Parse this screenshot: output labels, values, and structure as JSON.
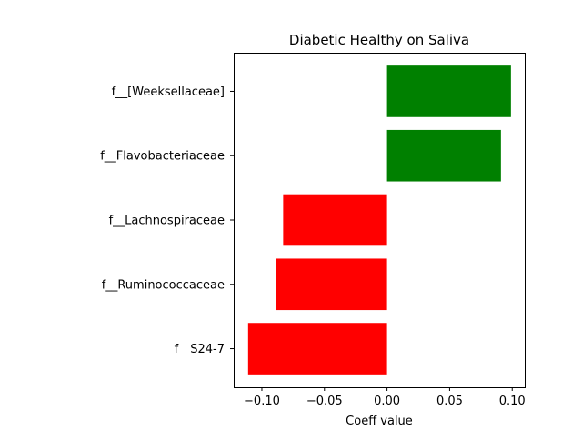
{
  "chart_data": {
    "type": "bar",
    "orientation": "horizontal",
    "title": "Diabetic Healthy on Saliva",
    "xlabel": "Coeff value",
    "ylabel": "",
    "categories": [
      "f__[Weeksellaceae]",
      "f__Flavobacteriaceae",
      "f__Lachnospiraceae",
      "f__Ruminococcaceae",
      "f__S24-7"
    ],
    "values": [
      0.099,
      0.091,
      -0.083,
      -0.089,
      -0.111
    ],
    "xlim": [
      -0.1225,
      0.11
    ],
    "xticks": [
      -0.1,
      -0.05,
      0.0,
      0.05,
      0.1
    ],
    "xtick_labels": [
      "−0.10",
      "−0.05",
      "0.00",
      "0.05",
      "0.10"
    ],
    "colors": {
      "positive": "#008000",
      "negative": "#ff0000"
    },
    "grid": false,
    "legend": "none"
  }
}
